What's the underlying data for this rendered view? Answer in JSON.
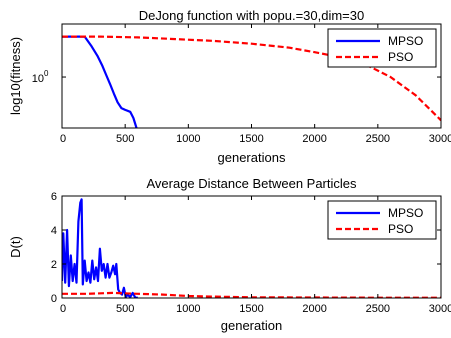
{
  "chart_data": [
    {
      "type": "line",
      "title": "DeJong function with popu.=30,dim=30",
      "xlabel": "generations",
      "ylabel": "log10(fitness)",
      "xlim": [
        0,
        3000
      ],
      "ylim": [
        0.3,
        3.5
      ],
      "yscale": "log",
      "xticks": [
        0,
        500,
        1000,
        1500,
        2000,
        2500,
        3000
      ],
      "yticks": [
        {
          "value": 1,
          "label": "10",
          "exponent": "0"
        }
      ],
      "grid": false,
      "legend_position": "top-right",
      "series": [
        {
          "name": "MPSO",
          "color": "#0000ff",
          "linestyle": "solid",
          "points": [
            [
              0,
              2.6
            ],
            [
              180,
              2.6
            ],
            [
              230,
              2.1
            ],
            [
              280,
              1.65
            ],
            [
              320,
              1.3
            ],
            [
              350,
              1.05
            ],
            [
              380,
              0.85
            ],
            [
              410,
              0.68
            ],
            [
              440,
              0.55
            ],
            [
              470,
              0.48
            ],
            [
              500,
              0.46
            ],
            [
              540,
              0.44
            ],
            [
              565,
              0.38
            ],
            [
              590,
              0.3
            ]
          ]
        },
        {
          "name": "PSO",
          "color": "#ff0000",
          "linestyle": "dashed",
          "points": [
            [
              0,
              2.6
            ],
            [
              300,
              2.6
            ],
            [
              600,
              2.55
            ],
            [
              900,
              2.45
            ],
            [
              1200,
              2.35
            ],
            [
              1500,
              2.2
            ],
            [
              1800,
              2.0
            ],
            [
              2000,
              1.8
            ],
            [
              2200,
              1.6
            ],
            [
              2400,
              1.35
            ],
            [
              2600,
              1.0
            ],
            [
              2800,
              0.65
            ],
            [
              3000,
              0.36
            ]
          ]
        }
      ]
    },
    {
      "type": "line",
      "title": "Average Distance Between Particles",
      "xlabel": "generation",
      "ylabel": "D(t)",
      "xlim": [
        0,
        3000
      ],
      "ylim": [
        0,
        6
      ],
      "xticks": [
        0,
        500,
        1000,
        1500,
        2000,
        2500,
        3000
      ],
      "yticks": [
        0,
        2,
        4,
        6
      ],
      "grid": false,
      "legend_position": "top-right",
      "series": [
        {
          "name": "MPSO",
          "color": "#0000ff",
          "linestyle": "solid",
          "points": [
            [
              0,
              1.0
            ],
            [
              10,
              3.8
            ],
            [
              25,
              0.9
            ],
            [
              40,
              4.0
            ],
            [
              55,
              0.7
            ],
            [
              70,
              2.5
            ],
            [
              85,
              1.0
            ],
            [
              100,
              2.0
            ],
            [
              115,
              0.9
            ],
            [
              130,
              4.5
            ],
            [
              145,
              5.6
            ],
            [
              155,
              5.8
            ],
            [
              165,
              0.8
            ],
            [
              180,
              2.2
            ],
            [
              195,
              1.0
            ],
            [
              210,
              1.5
            ],
            [
              225,
              0.9
            ],
            [
              240,
              2.2
            ],
            [
              255,
              1.1
            ],
            [
              270,
              1.8
            ],
            [
              285,
              1.0
            ],
            [
              300,
              2.9
            ],
            [
              315,
              1.6
            ],
            [
              330,
              2.0
            ],
            [
              345,
              1.2
            ],
            [
              360,
              2.0
            ],
            [
              375,
              1.2
            ],
            [
              390,
              1.5
            ],
            [
              405,
              1.9
            ],
            [
              420,
              1.4
            ],
            [
              430,
              2.0
            ],
            [
              445,
              0.5
            ],
            [
              460,
              0.3
            ],
            [
              475,
              0.2
            ],
            [
              490,
              0.6
            ],
            [
              505,
              0.05
            ],
            [
              520,
              0.2
            ],
            [
              540,
              0.05
            ],
            [
              560,
              0.3
            ],
            [
              580,
              0.02
            ],
            [
              600,
              0.02
            ]
          ]
        },
        {
          "name": "PSO",
          "color": "#ff0000",
          "linestyle": "dashed",
          "points": [
            [
              0,
              0.25
            ],
            [
              200,
              0.25
            ],
            [
              400,
              0.3
            ],
            [
              600,
              0.25
            ],
            [
              800,
              0.2
            ],
            [
              1000,
              0.12
            ],
            [
              1200,
              0.08
            ],
            [
              1500,
              0.04
            ],
            [
              2000,
              0.03
            ],
            [
              2500,
              0.02
            ],
            [
              3000,
              0.02
            ]
          ]
        }
      ]
    }
  ]
}
